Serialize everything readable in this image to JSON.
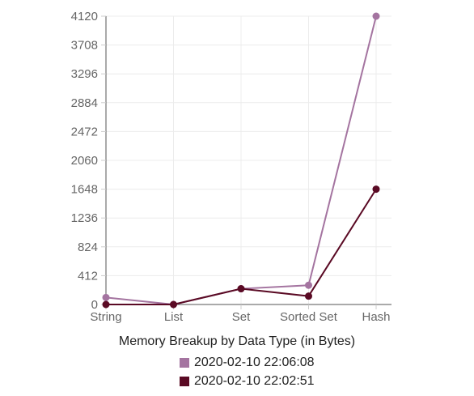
{
  "chart_data": {
    "type": "line",
    "categories": [
      "String",
      "List",
      "Set",
      "Sorted Set",
      "Hash"
    ],
    "ylim": [
      0,
      4120
    ],
    "yticks": [
      0,
      412,
      824,
      1236,
      1648,
      2060,
      2472,
      2884,
      3296,
      3708,
      4120
    ],
    "grid": true,
    "legend_title": "Memory Breakup by Data Type (in Bytes)",
    "legend_position": "bottom",
    "series": [
      {
        "name": "2020-02-10 22:06:08",
        "color": "#a474a0",
        "values": [
          100,
          0,
          225,
          275,
          4120
        ]
      },
      {
        "name": "2020-02-10 22:02:51",
        "color": "#5a0a24",
        "values": [
          0,
          0,
          225,
          120,
          1648
        ]
      }
    ]
  }
}
